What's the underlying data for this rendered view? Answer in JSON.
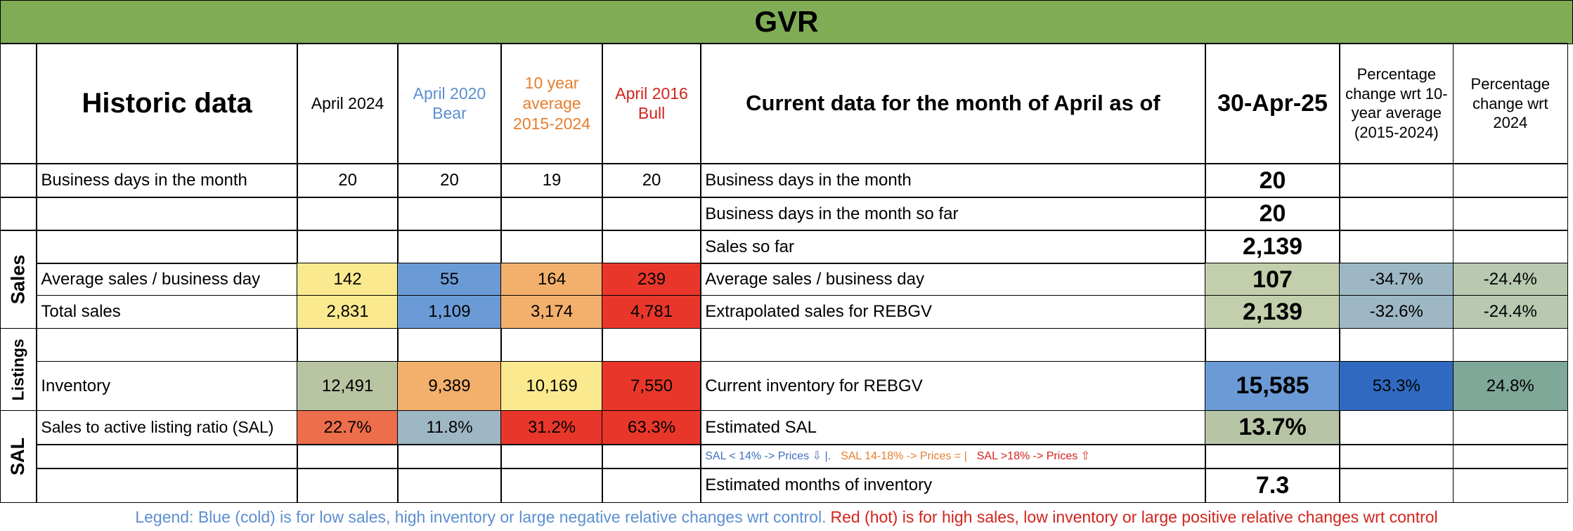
{
  "title": "GVR",
  "header": {
    "historic": "Historic data",
    "columns": [
      "April 2024",
      "April 2020 Bear",
      "10 year average 2015-2024",
      "April 2016 Bull"
    ],
    "current": "Current data for the month of April as of",
    "date": "30-Apr-25",
    "pct_10yr": "Percentage change wrt 10-year average (2015-2024)",
    "pct_2024": "Percentage change wrt 2024"
  },
  "groups": [
    "Sales",
    "Listings",
    "SAL"
  ],
  "rows": [
    [
      "Business days in the month",
      "20",
      "20",
      "19",
      "20",
      "Business days in the month",
      "20",
      null,
      null
    ],
    [
      null,
      null,
      null,
      null,
      null,
      "Business days in the month so far",
      "20",
      null,
      null
    ],
    [
      null,
      null,
      null,
      null,
      null,
      "Sales so far",
      "2,139",
      null,
      null
    ],
    [
      "Average sales /  business day",
      "142",
      "55",
      "164",
      "239",
      "Average sales / business day",
      "107",
      "-34.7%",
      "-24.4%"
    ],
    [
      "Total sales",
      "2,831",
      "1,109",
      "3,174",
      "4,781",
      "Extrapolated sales for REBGV",
      "2,139",
      "-32.6%",
      "-24.4%"
    ],
    [
      null,
      null,
      null,
      null,
      null,
      null,
      null,
      null,
      null
    ],
    [
      "Inventory",
      "12,491",
      "9,389",
      "10,169",
      "7,550",
      "Current inventory for REBGV",
      "15,585",
      "53.3%",
      "24.8%"
    ],
    [
      "Sales to active listing ratio (SAL)",
      "22.7%",
      "11.8%",
      "31.2%",
      "63.3%",
      "Estimated SAL",
      "13.7%",
      null,
      null
    ],
    [
      null,
      null,
      null,
      null,
      null,
      null,
      null,
      null,
      null
    ],
    [
      null,
      null,
      null,
      null,
      null,
      "Estimated months of inventory",
      "7.3",
      null,
      null
    ]
  ],
  "sal_note": [
    "SAL < 14% -> Prices ⇩  |.",
    "SAL 14-18% -> Prices =  |",
    "SAL >18% -> Prices ⇧"
  ],
  "legend": [
    "Legend: Blue (cold) is for low sales, high inventory or large negative relative changes wrt control.",
    "Red (hot) is for high sales, low inventory or large positive relative changes wrt control"
  ]
}
